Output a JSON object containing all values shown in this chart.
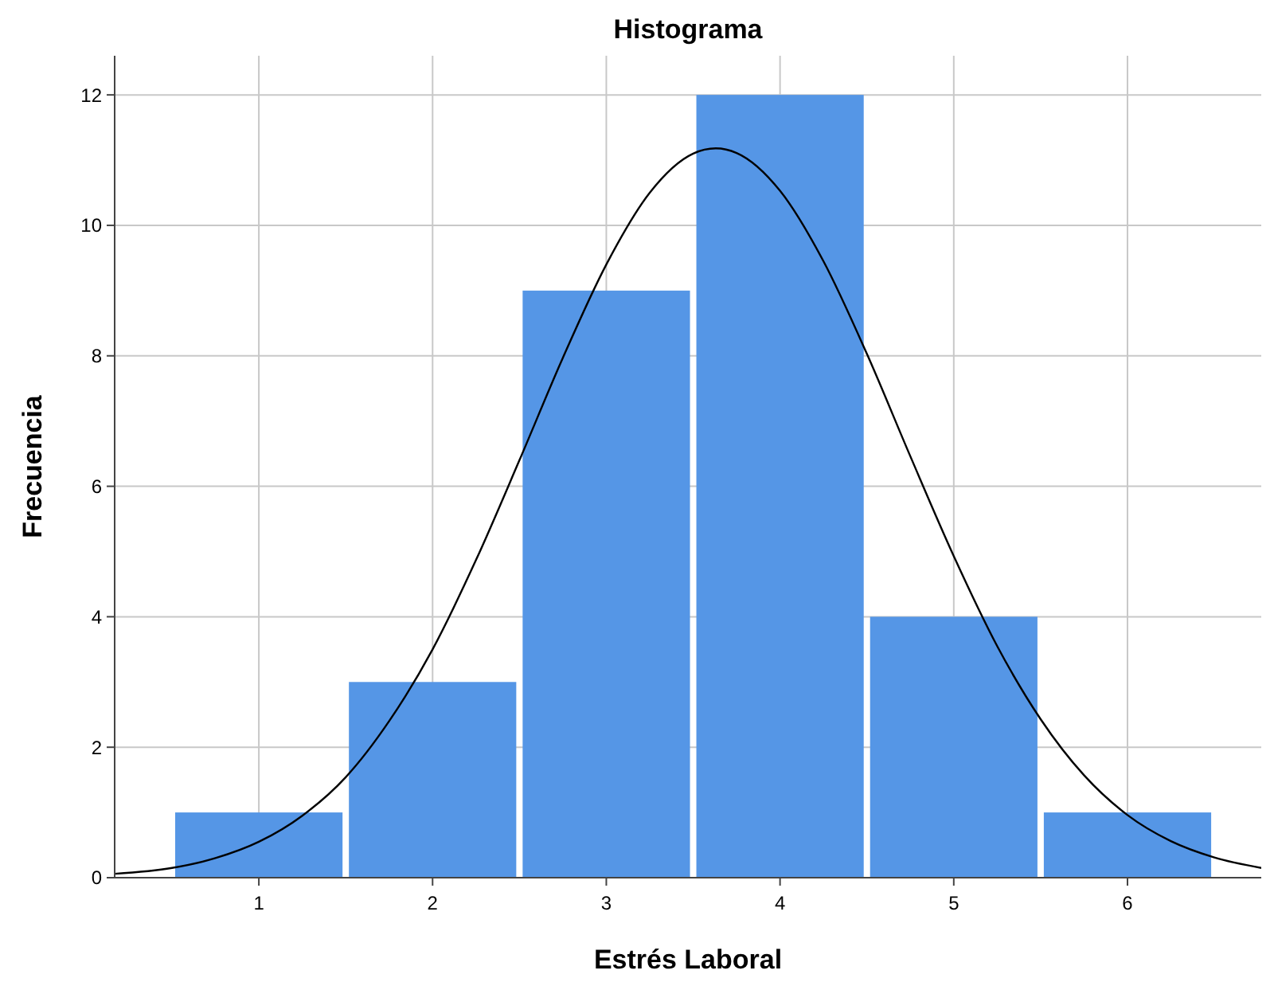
{
  "chart_data": {
    "type": "histogram",
    "title": "Histograma",
    "xlabel": "Estrés Laboral",
    "ylabel": "Frecuencia",
    "grid": true,
    "xlim": [
      0.17,
      6.77
    ],
    "xticks": [
      1,
      2,
      3,
      4,
      5,
      6
    ],
    "ylim": [
      0,
      12.6
    ],
    "yticks": [
      0,
      2,
      4,
      6,
      8,
      10,
      12
    ],
    "series": [
      {
        "color": "#5596e6",
        "bins": [
          0.5,
          1.5,
          2.5,
          3.5,
          4.5,
          5.5,
          6.5
        ],
        "values": [
          1,
          3,
          9,
          12,
          4,
          1
        ]
      },
      {
        "type": "line",
        "color": "#000000",
        "x": [
          0.17,
          0.5,
          0.75,
          1,
          1.25,
          1.5,
          1.75,
          2,
          2.25,
          2.5,
          2.75,
          3,
          3.25,
          3.5,
          3.63,
          3.75,
          4,
          4.25,
          4.5,
          4.75,
          5,
          5.25,
          5.5,
          5.75,
          6,
          6.25,
          6.5,
          6.77
        ],
        "values": [
          0.06,
          0.15,
          0.3,
          0.55,
          0.95,
          1.54,
          2.4,
          3.5,
          4.87,
          6.4,
          7.97,
          9.4,
          10.5,
          11.1,
          11.18,
          11.11,
          10.53,
          9.45,
          8.03,
          6.46,
          4.93,
          3.55,
          2.43,
          1.57,
          0.96,
          0.56,
          0.31,
          0.15
        ]
      }
    ]
  }
}
